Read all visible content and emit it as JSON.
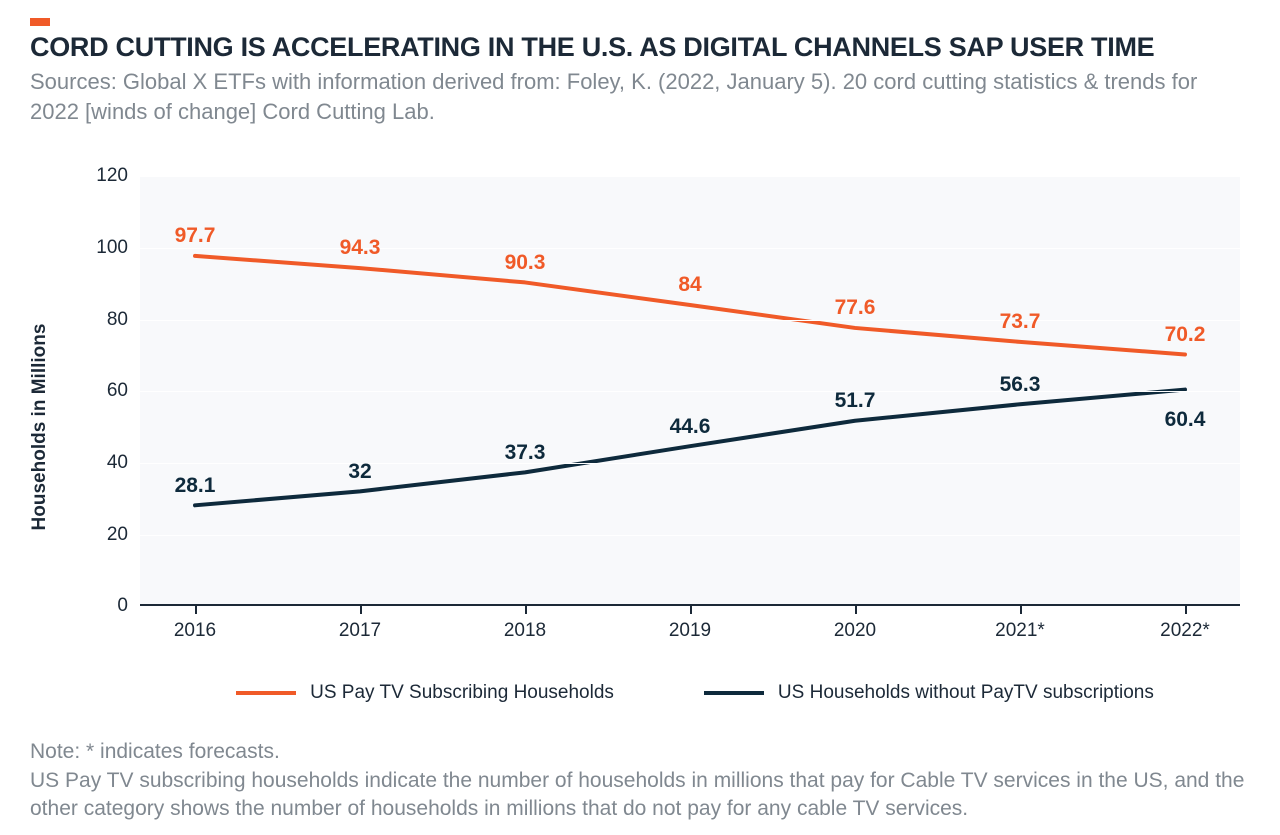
{
  "accent_color": "#f05a28",
  "title": "CORD CUTTING IS ACCELERATING IN THE U.S. AS DIGITAL CHANNELS SAP USER TIME",
  "sources": "Sources: Global X ETFs with information derived from: Foley, K. (2022, January 5). 20 cord cutting statistics & trends for 2022 [winds of change] Cord Cutting Lab.",
  "chart": {
    "type": "line",
    "background_color": "#f8f9fb",
    "grid_color": "#ffffff",
    "axis_color": "#1c2937",
    "y_axis_title": "Households in Millions",
    "ylim": [
      0,
      120
    ],
    "ytick_step": 20,
    "yticks": [
      0,
      20,
      40,
      60,
      80,
      100,
      120
    ],
    "categories": [
      "2016",
      "2017",
      "2018",
      "2019",
      "2020",
      "2021*",
      "2022*"
    ],
    "x_positions_pct": [
      5,
      20,
      35,
      50,
      65,
      80,
      95
    ],
    "line_width": 4,
    "label_fontsize": 21,
    "tick_fontsize": 19,
    "series": [
      {
        "name": "US Pay TV Subscribing Households",
        "color": "#f05a28",
        "values": [
          97.7,
          94.3,
          90.3,
          84,
          77.6,
          73.7,
          70.2
        ],
        "label_offset_y": -32
      },
      {
        "name": "US Households without PayTV subscriptions",
        "color": "#0e2a3c",
        "values": [
          28.1,
          32,
          37.3,
          44.6,
          51.7,
          56.3,
          60.4
        ],
        "label_offset_y": -32,
        "last_label_offset_y": 18
      }
    ]
  },
  "legend": {
    "items": [
      {
        "color": "#f05a28",
        "label": "US Pay TV Subscribing Households"
      },
      {
        "color": "#0e2a3c",
        "label": "US Households without PayTV subscriptions"
      }
    ]
  },
  "note_line1": "Note: * indicates forecasts.",
  "note_line2": "US Pay TV subscribing households indicate the number of households in millions that pay for Cable TV services in the US, and the other category shows the number of households in millions that do not pay for any cable TV services."
}
